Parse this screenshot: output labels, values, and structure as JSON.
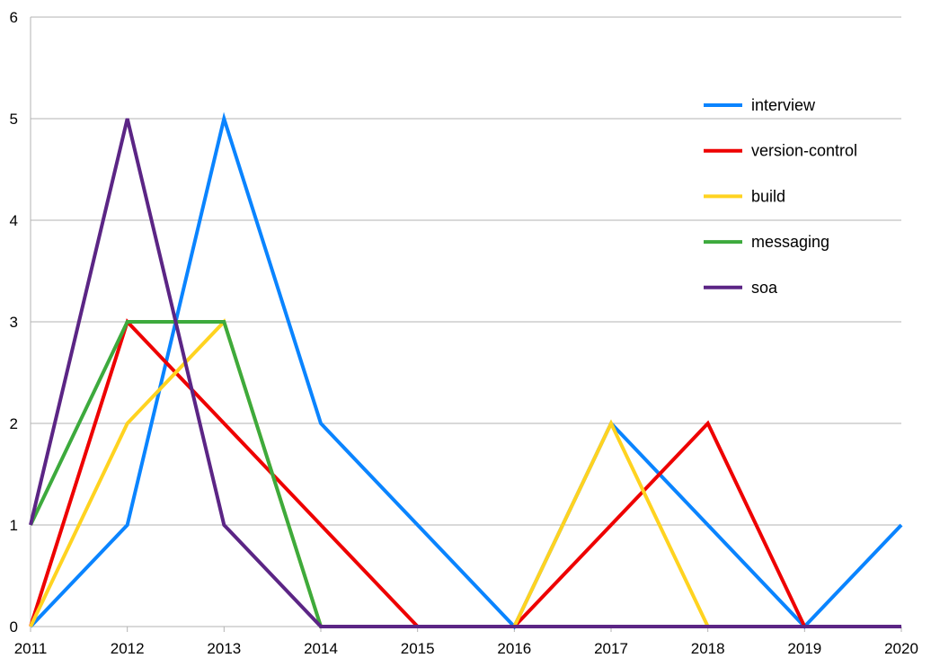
{
  "chart_data": {
    "type": "line",
    "title": "",
    "xlabel": "",
    "ylabel": "",
    "x": [
      "2011",
      "2012",
      "2013",
      "2014",
      "2015",
      "2016",
      "2017",
      "2018",
      "2019",
      "2020"
    ],
    "ylim": [
      0,
      6
    ],
    "yticks": [
      "0",
      "1",
      "2",
      "3",
      "4",
      "5",
      "6"
    ],
    "grid": "horizontal",
    "legend_position": "top-right",
    "series": [
      {
        "name": "interview",
        "color": "#0a84ff",
        "values": [
          0,
          1,
          5,
          2,
          1,
          0,
          2,
          1,
          0,
          1
        ]
      },
      {
        "name": "version-control",
        "color": "#ee0000",
        "values": [
          0,
          3,
          2,
          1,
          0,
          0,
          1,
          2,
          0,
          0
        ]
      },
      {
        "name": "build",
        "color": "#ffd320",
        "values": [
          0,
          2,
          3,
          0,
          0,
          0,
          2,
          0,
          0,
          0
        ]
      },
      {
        "name": "messaging",
        "color": "#3daa3d",
        "values": [
          1,
          3,
          3,
          0,
          0,
          0,
          0,
          0,
          0,
          0
        ]
      },
      {
        "name": "soa",
        "color": "#5b2585",
        "values": [
          1,
          5,
          1,
          0,
          0,
          0,
          0,
          0,
          0,
          0
        ]
      }
    ]
  }
}
